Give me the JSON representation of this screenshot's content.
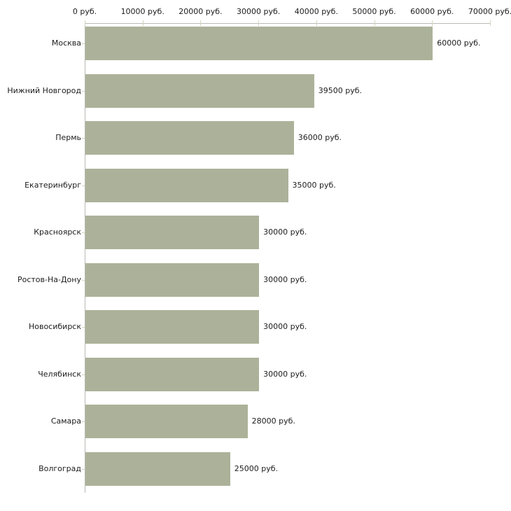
{
  "chart_data": {
    "type": "bar",
    "orientation": "horizontal",
    "title": "",
    "unit": "руб.",
    "categories": [
      "Москва",
      "Нижний Новгород",
      "Пермь",
      "Екатеринбург",
      "Красноярск",
      "Ростов-На-Дону",
      "Новосибирск",
      "Челябинск",
      "Самара",
      "Волгоград"
    ],
    "values": [
      60000,
      39500,
      36000,
      35000,
      30000,
      30000,
      30000,
      30000,
      28000,
      25000
    ],
    "value_labels": [
      "60000 руб.",
      "39500 руб.",
      "36000 руб.",
      "35000 руб.",
      "30000 руб.",
      "30000 руб.",
      "30000 руб.",
      "30000 руб.",
      "28000 руб.",
      "25000 руб."
    ],
    "x_axis": {
      "position": "top",
      "min": 0,
      "max": 70000,
      "tick_step": 10000,
      "tick_labels": [
        "0 руб.",
        "10000 руб.",
        "20000 руб.",
        "30000 руб.",
        "40000 руб.",
        "50000 руб.",
        "60000 руб.",
        "70000 руб."
      ]
    },
    "grid": false,
    "legend": false,
    "colors": {
      "bar": "#abb299",
      "axis_line": "#b9bbb3",
      "tick": "#d3d5bc",
      "text": "#1c1c1c",
      "background": "#ffffff"
    }
  }
}
